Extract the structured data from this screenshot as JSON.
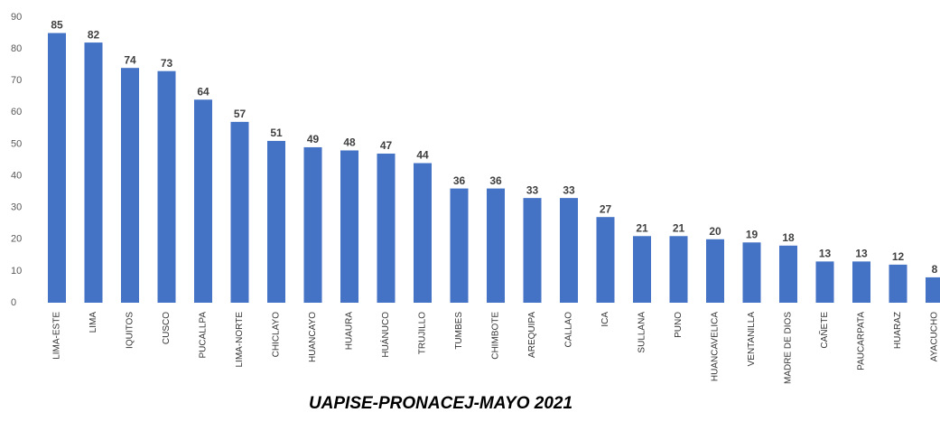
{
  "chart_data": {
    "type": "bar",
    "caption": "UAPISE-PRONACEJ-MAYO 2021",
    "categories": [
      "LIMA-ESTE",
      "LIMA",
      "IQUITOS",
      "CUSCO",
      "PUCALLPA",
      "LIMA-NORTE",
      "CHICLAYO",
      "HUANCAYO",
      "HUAURA",
      "HUÁNUCO",
      "TRUJILLO",
      "TUMBES",
      "CHIMBOTE",
      "AREQUIPA",
      "CALLAO",
      "ICA",
      "SULLANA",
      "PUNO",
      "HUANCAVELICA",
      "VENTANILLA",
      "MADRE DE DIOS",
      "CAÑETE",
      "PAUCARPATA",
      "HUARAZ",
      "AYACUCHO"
    ],
    "values": [
      85,
      82,
      74,
      73,
      64,
      57,
      51,
      49,
      48,
      47,
      44,
      36,
      36,
      33,
      33,
      27,
      21,
      21,
      20,
      19,
      18,
      13,
      13,
      12,
      8
    ],
    "color": "#4472c4",
    "ylim": [
      0,
      90
    ],
    "yticks": [
      0,
      10,
      20,
      30,
      40,
      50,
      60,
      70,
      80,
      90
    ],
    "grid": false
  }
}
